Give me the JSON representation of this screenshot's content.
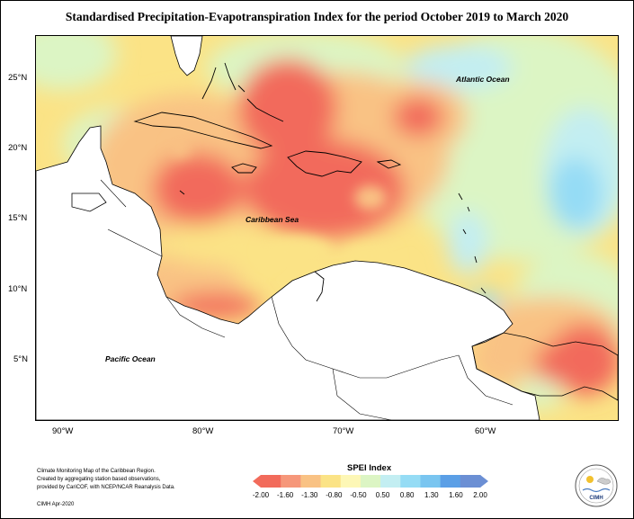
{
  "title": "Standardised Precipitation-Evapotranspiration Index for the period October 2019 to March 2020",
  "lat_ticks": [
    "25°N",
    "20°N",
    "15°N",
    "10°N",
    "5°N"
  ],
  "lon_ticks": [
    "90°W",
    "80°W",
    "70°W",
    "60°W"
  ],
  "ocean_labels": {
    "atlantic": "Atlantic Ocean",
    "caribbean": "Caribbean Sea",
    "pacific": "Pacific Ocean"
  },
  "credits": [
    "Climate Monitoring Map of the Caribbean Region.",
    "Created by aggregating station based observations,",
    "provided by CariCOF, with NCEP/NCAR Reanalysis Data."
  ],
  "stamp": "CIMH Apr-2020",
  "legend": {
    "title": "SPEI Index",
    "ticks": [
      "-2.00",
      "-1.60",
      "-1.30",
      "-0.80",
      "-0.50",
      "0.50",
      "0.80",
      "1.30",
      "1.60",
      "2.00"
    ],
    "colors": [
      "#f26b5b",
      "#f6977a",
      "#f9c284",
      "#fbe386",
      "#fdf7b6",
      "#dcf5c4",
      "#c3eef2",
      "#95dcf5",
      "#79c5f0",
      "#5b9fe6",
      "#6b8fd4"
    ]
  },
  "logo": {
    "text": "CIMH",
    "icon": "cimh-logo-icon"
  }
}
